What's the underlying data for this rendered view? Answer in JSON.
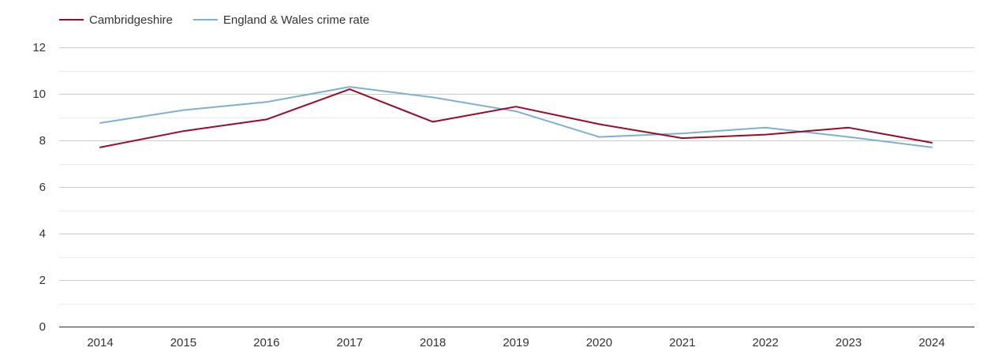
{
  "chart_data": {
    "type": "line",
    "title": "",
    "xlabel": "",
    "ylabel": "",
    "x": [
      "2014",
      "2015",
      "2016",
      "2017",
      "2018",
      "2019",
      "2020",
      "2021",
      "2022",
      "2023",
      "2024"
    ],
    "ylim": [
      0,
      12
    ],
    "yticks": [
      "0",
      "2",
      "4",
      "6",
      "8",
      "10",
      "12"
    ],
    "grid": true,
    "legend": "top-left",
    "series": [
      {
        "name": "Cambridgeshire",
        "color": "#9b0a2a",
        "values": [
          7.7,
          8.4,
          8.9,
          10.2,
          8.8,
          9.45,
          8.7,
          8.1,
          8.25,
          8.55,
          7.9
        ]
      },
      {
        "name": "England & Wales crime rate",
        "color": "#7db0d3",
        "values": [
          8.75,
          9.3,
          9.65,
          10.3,
          9.85,
          9.25,
          8.15,
          8.3,
          8.55,
          8.15,
          7.7
        ]
      }
    ]
  }
}
